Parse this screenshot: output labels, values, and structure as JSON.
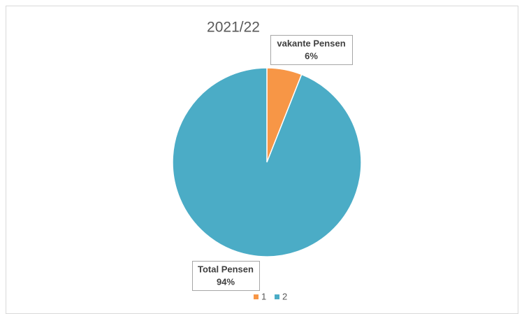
{
  "chart_data": {
    "type": "pie",
    "title": "2021/22",
    "categories": [
      "1",
      "2"
    ],
    "slice_labels": [
      "vakante Pensen",
      "Total Pensen"
    ],
    "values": [
      6,
      94
    ],
    "value_labels": [
      "6%",
      "94%"
    ],
    "colors": [
      "#f79646",
      "#4bacc6"
    ],
    "legend": "bottom"
  }
}
